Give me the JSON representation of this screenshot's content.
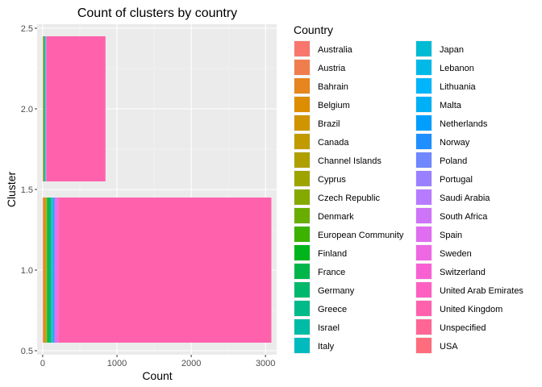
{
  "chart_data": {
    "type": "bar",
    "orientation": "horizontal",
    "stacked": true,
    "title": "Count of clusters by country",
    "xlabel": "Count",
    "ylabel": "Cluster",
    "xlim": [
      -75,
      3150
    ],
    "ylim": [
      0.475,
      2.525
    ],
    "x_ticks": [
      0,
      1000,
      2000,
      3000
    ],
    "x_tick_labels": [
      "0",
      "1000",
      "2000",
      "3000"
    ],
    "y_ticks": [
      0.5,
      1.0,
      1.5,
      2.0,
      2.5
    ],
    "y_tick_labels": [
      "0.5",
      "1.0",
      "1.5",
      "2.0",
      "2.5"
    ],
    "grid": true,
    "legend_title": "Country",
    "legend_position": "right",
    "bar_width": 0.9,
    "categories": [
      1,
      2
    ],
    "series": [
      {
        "name": "Australia",
        "color": "#F8766D",
        "values": [
          9,
          2
        ]
      },
      {
        "name": "Austria",
        "color": "#F07E4C",
        "values": [
          4,
          0
        ]
      },
      {
        "name": "Bahrain",
        "color": "#E7851E",
        "values": [
          1,
          0
        ]
      },
      {
        "name": "Belgium",
        "color": "#DC8D00",
        "values": [
          20,
          5
        ]
      },
      {
        "name": "Brazil",
        "color": "#CF9400",
        "values": [
          1,
          0
        ]
      },
      {
        "name": "Canada",
        "color": "#C19A00",
        "values": [
          3,
          1
        ]
      },
      {
        "name": "Channel Islands",
        "color": "#B09F00",
        "values": [
          8,
          2
        ]
      },
      {
        "name": "Cyprus",
        "color": "#9DA400",
        "values": [
          6,
          1
        ]
      },
      {
        "name": "Czech Republic",
        "color": "#86A900",
        "values": [
          1,
          0
        ]
      },
      {
        "name": "Denmark",
        "color": "#69AD00",
        "values": [
          6,
          1
        ]
      },
      {
        "name": "European Community",
        "color": "#3BB100",
        "values": [
          1,
          0
        ]
      },
      {
        "name": "Finland",
        "color": "#00B41C",
        "values": [
          9,
          3
        ]
      },
      {
        "name": "France",
        "color": "#00B64A",
        "values": [
          20,
          8
        ]
      },
      {
        "name": "Germany",
        "color": "#00B86C",
        "values": [
          25,
          8
        ]
      },
      {
        "name": "Greece",
        "color": "#00BA8A",
        "values": [
          3,
          1
        ]
      },
      {
        "name": "Israel",
        "color": "#00BBA5",
        "values": [
          3,
          0
        ]
      },
      {
        "name": "Italy",
        "color": "#00BBBE",
        "values": [
          10,
          3
        ]
      },
      {
        "name": "Japan",
        "color": "#00BBD4",
        "values": [
          5,
          1
        ]
      },
      {
        "name": "Lebanon",
        "color": "#00B9E9",
        "values": [
          1,
          0
        ]
      },
      {
        "name": "Lithuania",
        "color": "#00B5FB",
        "values": [
          1,
          0
        ]
      },
      {
        "name": "Malta",
        "color": "#00B0F6",
        "values": [
          2,
          0
        ]
      },
      {
        "name": "Netherlands",
        "color": "#009FFF",
        "values": [
          7,
          2
        ]
      },
      {
        "name": "Norway",
        "color": "#1F8FFF",
        "values": [
          7,
          2
        ]
      },
      {
        "name": "Poland",
        "color": "#6F87FF",
        "values": [
          5,
          1
        ]
      },
      {
        "name": "Portugal",
        "color": "#9A80FF",
        "values": [
          12,
          3
        ]
      },
      {
        "name": "Saudi Arabia",
        "color": "#B77BFF",
        "values": [
          1,
          0
        ]
      },
      {
        "name": "South Africa",
        "color": "#CD74F9",
        "values": [
          1,
          0
        ]
      },
      {
        "name": "Spain",
        "color": "#DF6EF0",
        "values": [
          20,
          5
        ]
      },
      {
        "name": "Sweden",
        "color": "#EE67E3",
        "values": [
          6,
          2
        ]
      },
      {
        "name": "Switzerland",
        "color": "#F961D3",
        "values": [
          15,
          4
        ]
      },
      {
        "name": "United Arab Emirates",
        "color": "#FF5FC1",
        "values": [
          1,
          0
        ]
      },
      {
        "name": "United Kingdom",
        "color": "#FF61AC",
        "values": [
          2860,
          790
        ]
      },
      {
        "name": "Unspecified",
        "color": "#FF6696",
        "values": [
          4,
          1
        ]
      },
      {
        "name": "USA",
        "color": "#FF6C7D",
        "values": [
          2,
          0
        ]
      }
    ]
  }
}
